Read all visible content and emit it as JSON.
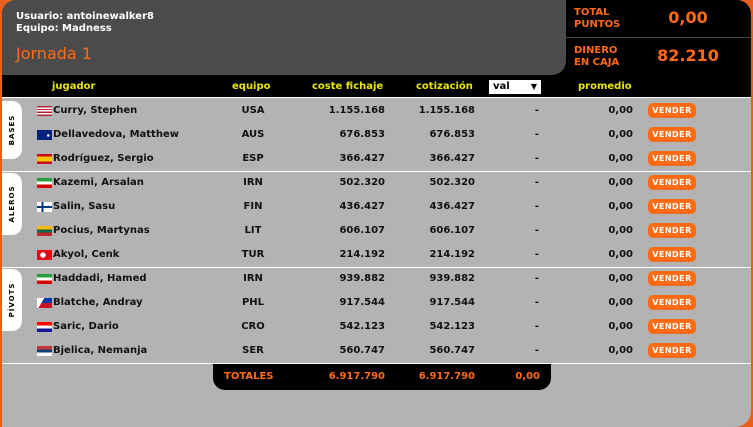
{
  "user": {
    "usuario": "Usuario: antoinewalker8",
    "equipo": "Equipo: Madness",
    "jornada": "Jornada 1"
  },
  "stats": {
    "total_puntos_label1": "TOTAL",
    "total_puntos_label2": "PUNTOS",
    "total_puntos": "0,00",
    "dinero_label1": "DINERO",
    "dinero_label2": "EN CAJA",
    "dinero": "82.210"
  },
  "headers": {
    "jugador": "jugador",
    "equipo": "equipo",
    "coste": "coste fichaje",
    "cotizacion": "cotización",
    "val_select": "val",
    "promedio": "promedio"
  },
  "groups": [
    {
      "label": "BASES"
    },
    {
      "label": "ALEROS"
    },
    {
      "label": "PÍVOTS"
    }
  ],
  "players": [
    {
      "name": "Curry, Stephen",
      "team": "USA",
      "coste": "1.155.168",
      "cot": "1.155.168",
      "val": "-",
      "prom": "0,00",
      "flag": "usa"
    },
    {
      "name": "Dellavedova, Matthew",
      "team": "AUS",
      "coste": "676.853",
      "cot": "676.853",
      "val": "-",
      "prom": "0,00",
      "flag": "aus"
    },
    {
      "name": "Rodríguez, Sergio",
      "team": "ESP",
      "coste": "366.427",
      "cot": "366.427",
      "val": "-",
      "prom": "0,00",
      "flag": "esp"
    },
    {
      "name": "Kazemi, Arsalan",
      "team": "IRN",
      "coste": "502.320",
      "cot": "502.320",
      "val": "-",
      "prom": "0,00",
      "flag": "irn"
    },
    {
      "name": "Salin, Sasu",
      "team": "FIN",
      "coste": "436.427",
      "cot": "436.427",
      "val": "-",
      "prom": "0,00",
      "flag": "fin"
    },
    {
      "name": "Pocius, Martynas",
      "team": "LIT",
      "coste": "606.107",
      "cot": "606.107",
      "val": "-",
      "prom": "0,00",
      "flag": "lit"
    },
    {
      "name": "Akyol, Cenk",
      "team": "TUR",
      "coste": "214.192",
      "cot": "214.192",
      "val": "-",
      "prom": "0,00",
      "flag": "tur"
    },
    {
      "name": "Haddadi, Hamed",
      "team": "IRN",
      "coste": "939.882",
      "cot": "939.882",
      "val": "-",
      "prom": "0,00",
      "flag": "irn"
    },
    {
      "name": "Blatche, Andray",
      "team": "PHL",
      "coste": "917.544",
      "cot": "917.544",
      "val": "-",
      "prom": "0,00",
      "flag": "phl"
    },
    {
      "name": "Saric, Dario",
      "team": "CRO",
      "coste": "542.123",
      "cot": "542.123",
      "val": "-",
      "prom": "0,00",
      "flag": "cro"
    },
    {
      "name": "Bjelica, Nemanja",
      "team": "SER",
      "coste": "560.747",
      "cot": "560.747",
      "val": "-",
      "prom": "0,00",
      "flag": "ser"
    }
  ],
  "sell_label": "VENDER",
  "totals": {
    "label": "TOTALES",
    "coste": "6.917.790",
    "cot": "6.917.790",
    "prom": "0,00"
  },
  "colors": {
    "accent": "#ff6a13",
    "header_text": "#e8e800"
  }
}
